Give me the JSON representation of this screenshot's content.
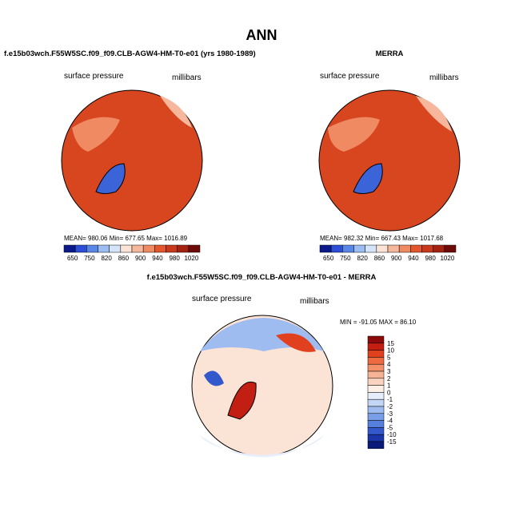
{
  "title": "ANN",
  "panels": [
    {
      "title": "f.e15b03wch.F55W5SC.f09_f09.CLB-AGW4-HM-T0-e01 (yrs 1980-1989)",
      "variable": "surface pressure",
      "units": "millibars",
      "stats": "MEAN= 980.06  Min= 677.65  Max= 1016.89",
      "colorbar": {
        "labels": [
          650,
          750,
          820,
          860,
          900,
          940,
          980,
          1020
        ],
        "colors": [
          "#0a1a8c",
          "#2c4fd6",
          "#5a86e8",
          "#9cbcf4",
          "#d5e4fa",
          "#fbe3d6",
          "#f6b79c",
          "#ef8a62",
          "#e4572e",
          "#c93a1c",
          "#a32212",
          "#6e0a08"
        ]
      }
    },
    {
      "title": "MERRA",
      "variable": "surface pressure",
      "units": "millibars",
      "stats": "MEAN= 982.32  Min= 667.43  Max= 1017.68",
      "colorbar": {
        "labels": [
          650,
          750,
          820,
          860,
          900,
          940,
          980,
          1020
        ],
        "colors": [
          "#0a1a8c",
          "#2c4fd6",
          "#5a86e8",
          "#9cbcf4",
          "#d5e4fa",
          "#fbe3d6",
          "#f6b79c",
          "#ef8a62",
          "#e4572e",
          "#c93a1c",
          "#a32212",
          "#6e0a08"
        ]
      }
    },
    {
      "title": "f.e15b03wch.F55W5SC.f09_f09.CLB-AGW4-HM-T0-e01 - MERRA",
      "variable": "surface pressure",
      "units": "millibars",
      "stats": "MIN = -91.05 MAX =  86.10",
      "colorbar": {
        "labels": [
          15,
          10,
          5,
          4,
          3,
          2,
          1,
          0,
          -1,
          -2,
          -3,
          -4,
          -5,
          -10,
          -15
        ],
        "colors": [
          "#8c0a0a",
          "#c21e12",
          "#e0401e",
          "#ee6a40",
          "#f3906a",
          "#f7b395",
          "#fad3c0",
          "#fdeee6",
          "#e6eefb",
          "#c4d6f6",
          "#9fbcf0",
          "#7a9ee8",
          "#5680de",
          "#3358cc",
          "#1a36a8",
          "#0a1a7a"
        ]
      }
    }
  ]
}
